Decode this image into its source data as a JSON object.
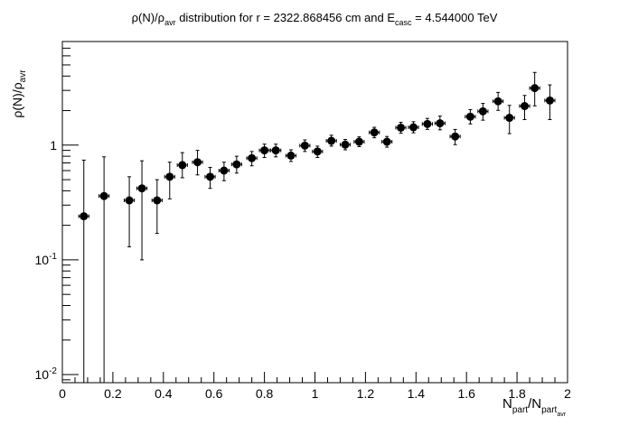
{
  "chart_data": {
    "type": "scatter",
    "title": {
      "main": "ρ(N)/ρ",
      "main_sub": "avr",
      "mid": " distribution for r = 2322.868456 cm and E",
      "mid_sub": "casc",
      "end": " = 4.544000 TeV"
    },
    "ylabel": {
      "main": "ρ(N)/ρ",
      "sub": "avr"
    },
    "xlabel": {
      "main": "N",
      "sub1": "part",
      "mid": "/N",
      "sub2": "part",
      "subsub": "avr"
    },
    "x_ticks": [
      "0",
      "0.2",
      "0.4",
      "0.6",
      "0.8",
      "1",
      "1.2",
      "1.4",
      "1.6",
      "1.8",
      "2"
    ],
    "y_ticks": [
      {
        "base": "10",
        "exp": "-2",
        "value": 0.01
      },
      {
        "base": "10",
        "exp": "-1",
        "value": 0.1
      },
      {
        "base": "1",
        "exp": "",
        "value": 1
      }
    ],
    "xlim": [
      0,
      2
    ],
    "ylim": [
      0.0085,
      8
    ],
    "y_scale": "log",
    "x_error": 0.02,
    "points": [
      {
        "x": 0.085,
        "y": 0.24,
        "lo": 0.0085,
        "hi": 0.74
      },
      {
        "x": 0.165,
        "y": 0.36,
        "lo": 0.0085,
        "hi": 0.79
      },
      {
        "x": 0.265,
        "y": 0.33,
        "lo": 0.13,
        "hi": 0.53
      },
      {
        "x": 0.315,
        "y": 0.42,
        "lo": 0.1,
        "hi": 0.73
      },
      {
        "x": 0.375,
        "y": 0.33,
        "lo": 0.17,
        "hi": 0.5
      },
      {
        "x": 0.425,
        "y": 0.53,
        "lo": 0.34,
        "hi": 0.71
      },
      {
        "x": 0.475,
        "y": 0.67,
        "lo": 0.52,
        "hi": 0.86
      },
      {
        "x": 0.535,
        "y": 0.71,
        "lo": 0.55,
        "hi": 0.9
      },
      {
        "x": 0.585,
        "y": 0.53,
        "lo": 0.42,
        "hi": 0.64
      },
      {
        "x": 0.64,
        "y": 0.6,
        "lo": 0.49,
        "hi": 0.71
      },
      {
        "x": 0.69,
        "y": 0.68,
        "lo": 0.57,
        "hi": 0.8
      },
      {
        "x": 0.75,
        "y": 0.77,
        "lo": 0.66,
        "hi": 0.88
      },
      {
        "x": 0.8,
        "y": 0.9,
        "lo": 0.78,
        "hi": 1.02
      },
      {
        "x": 0.845,
        "y": 0.9,
        "lo": 0.79,
        "hi": 1.02
      },
      {
        "x": 0.905,
        "y": 0.81,
        "lo": 0.72,
        "hi": 0.91
      },
      {
        "x": 0.96,
        "y": 0.99,
        "lo": 0.88,
        "hi": 1.11
      },
      {
        "x": 1.01,
        "y": 0.88,
        "lo": 0.78,
        "hi": 0.98
      },
      {
        "x": 1.065,
        "y": 1.09,
        "lo": 0.98,
        "hi": 1.22
      },
      {
        "x": 1.12,
        "y": 1.01,
        "lo": 0.91,
        "hi": 1.12
      },
      {
        "x": 1.175,
        "y": 1.07,
        "lo": 0.97,
        "hi": 1.18
      },
      {
        "x": 1.235,
        "y": 1.29,
        "lo": 1.16,
        "hi": 1.43
      },
      {
        "x": 1.285,
        "y": 1.07,
        "lo": 0.96,
        "hi": 1.19
      },
      {
        "x": 1.34,
        "y": 1.42,
        "lo": 1.27,
        "hi": 1.58
      },
      {
        "x": 1.39,
        "y": 1.43,
        "lo": 1.28,
        "hi": 1.6
      },
      {
        "x": 1.445,
        "y": 1.53,
        "lo": 1.37,
        "hi": 1.71
      },
      {
        "x": 1.495,
        "y": 1.55,
        "lo": 1.36,
        "hi": 1.79
      },
      {
        "x": 1.555,
        "y": 1.19,
        "lo": 1.01,
        "hi": 1.37
      },
      {
        "x": 1.615,
        "y": 1.77,
        "lo": 1.53,
        "hi": 2.04
      },
      {
        "x": 1.665,
        "y": 1.97,
        "lo": 1.65,
        "hi": 2.31
      },
      {
        "x": 1.725,
        "y": 2.41,
        "lo": 2.01,
        "hi": 2.88
      },
      {
        "x": 1.77,
        "y": 1.73,
        "lo": 1.26,
        "hi": 2.22
      },
      {
        "x": 1.83,
        "y": 2.19,
        "lo": 1.67,
        "hi": 2.71
      },
      {
        "x": 1.87,
        "y": 3.14,
        "lo": 2.2,
        "hi": 4.3
      },
      {
        "x": 1.93,
        "y": 2.45,
        "lo": 1.67,
        "hi": 3.35
      }
    ]
  }
}
